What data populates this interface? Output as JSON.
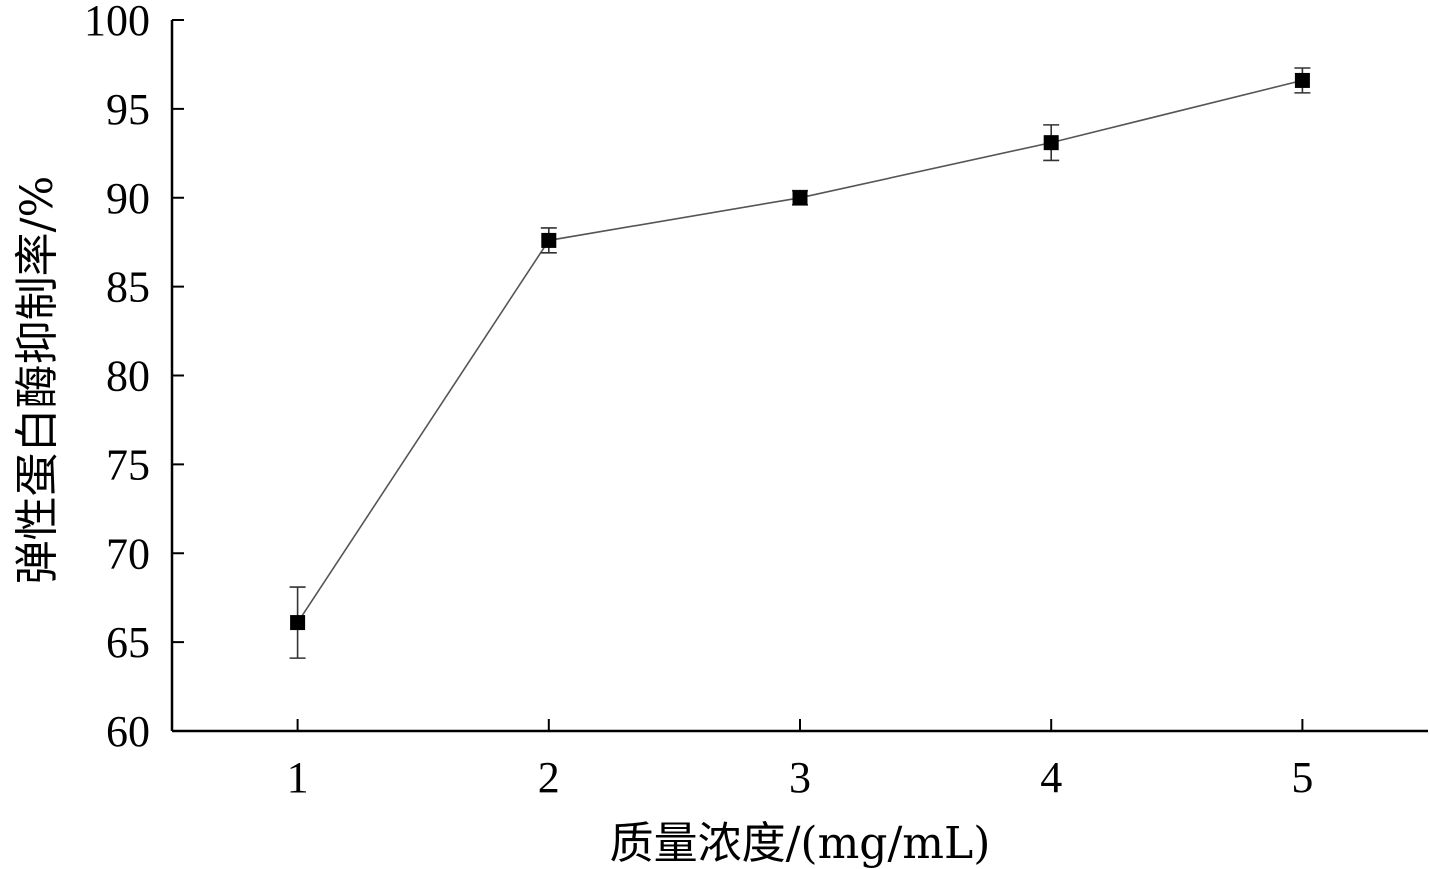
{
  "chart_data": {
    "type": "line",
    "title": "",
    "xlabel": "质量浓度/(mg/mL)",
    "ylabel": "弹性蛋白酶抑制率/%",
    "x": [
      1,
      2,
      3,
      4,
      5
    ],
    "xticks": [
      "1",
      "2",
      "3",
      "4",
      "5"
    ],
    "xlim": [
      0.5,
      5.5
    ],
    "ylim": [
      60,
      100
    ],
    "yticks": [
      "60",
      "65",
      "70",
      "75",
      "80",
      "85",
      "90",
      "95",
      "100"
    ],
    "grid": false,
    "legend": "none",
    "series": [
      {
        "values": [
          66.1,
          87.6,
          90.0,
          93.1,
          96.6
        ],
        "errors": [
          2.0,
          0.7,
          0.4,
          1.0,
          0.7
        ],
        "marker": "square",
        "color": "#000000"
      }
    ]
  }
}
